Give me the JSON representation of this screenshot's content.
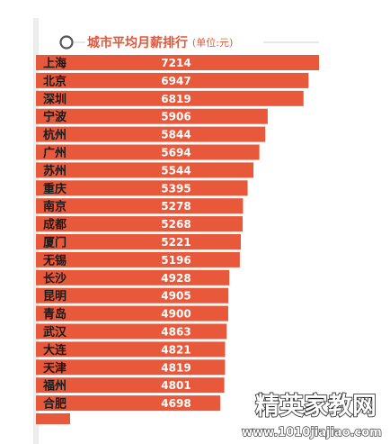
{
  "chart_data": {
    "type": "bar",
    "orientation": "horizontal",
    "title": "城市平均月薪排行",
    "unit_note": "(单位:元)",
    "categories": [
      "上海",
      "北京",
      "深圳",
      "宁波",
      "杭州",
      "广州",
      "苏州",
      "重庆",
      "南京",
      "成都",
      "厦门",
      "无锡",
      "长沙",
      "昆明",
      "青岛",
      "武汉",
      "大连",
      "天津",
      "福州",
      "合肥"
    ],
    "values": [
      7214,
      6947,
      6819,
      5906,
      5844,
      5694,
      5544,
      5395,
      5278,
      5268,
      5221,
      5196,
      4928,
      4905,
      4900,
      4863,
      4821,
      4819,
      4801,
      4698
    ],
    "bar_color": "#e8593c",
    "title_color": "#e2563b"
  },
  "watermark": {
    "main": "精英家教网",
    "url": "www.1010jiajiao.com"
  }
}
